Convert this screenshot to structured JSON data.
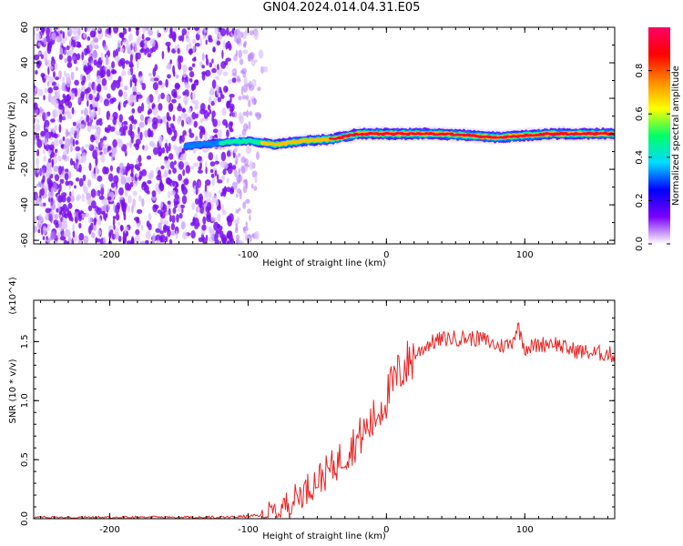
{
  "title": "GN04.2024.014.04.31.E05",
  "chart_data": [
    {
      "type": "heatmap",
      "title": "GN04.2024.014.04.31.E05",
      "xlabel": "Height of straight line (km)",
      "ylabel": "Frequency (Hz)",
      "xlim": [
        -255,
        165
      ],
      "ylim": [
        -62,
        60
      ],
      "x_ticks": [
        -200,
        -100,
        0,
        100
      ],
      "y_ticks": [
        60,
        40,
        20,
        0,
        -20,
        -40,
        -60
      ],
      "colorbar": {
        "label": "Normalized spectral amplitude",
        "range": [
          0.0,
          1.0
        ],
        "ticks": [
          0.0,
          0.2,
          0.4,
          0.6,
          0.8
        ],
        "colormap": [
          "#ffffff",
          "#7a00ff",
          "#0000ff",
          "#00dcff",
          "#00ff66",
          "#ffff00",
          "#ff8800",
          "#ff0000",
          "#ff0066"
        ]
      },
      "noise_region": {
        "x_range": [
          -255,
          -100
        ],
        "frequency_range": [
          -60,
          60
        ]
      },
      "signal_trace": [
        {
          "x": -145,
          "frequency": -7,
          "amplitude": 0.3
        },
        {
          "x": -120,
          "frequency": -5,
          "amplitude": 0.4
        },
        {
          "x": -100,
          "frequency": -4,
          "amplitude": 0.45
        },
        {
          "x": -80,
          "frequency": -6,
          "amplitude": 0.7
        },
        {
          "x": -60,
          "frequency": -4,
          "amplitude": 0.75
        },
        {
          "x": -40,
          "frequency": -3,
          "amplitude": 0.8
        },
        {
          "x": -20,
          "frequency": 0,
          "amplitude": 0.85
        },
        {
          "x": 0,
          "frequency": 0,
          "amplitude": 0.95
        },
        {
          "x": 40,
          "frequency": 0,
          "amplitude": 0.9
        },
        {
          "x": 80,
          "frequency": -2,
          "amplitude": 0.85
        },
        {
          "x": 120,
          "frequency": 0,
          "amplitude": 0.9
        },
        {
          "x": 165,
          "frequency": 0,
          "amplitude": 0.85
        }
      ]
    },
    {
      "type": "line",
      "xlabel": "Height of straight line (km)",
      "ylabel": "SNR (10 * v/v)",
      "y_multiplier": "(x10^4)",
      "xlim": [
        -255,
        165
      ],
      "ylim": [
        0,
        1.85
      ],
      "x_ticks": [
        -200,
        -100,
        0,
        100
      ],
      "y_ticks": [
        0.0,
        0.5,
        1.0,
        1.5
      ],
      "line_color": "#ee2222",
      "series": [
        {
          "x": [
            -255,
            -200,
            -150,
            -120,
            -100,
            -90,
            -80,
            -70,
            -60,
            -50,
            -40,
            -30,
            -20,
            -10,
            0,
            10,
            20,
            30,
            40,
            50,
            60,
            70,
            80,
            90,
            95,
            100,
            110,
            120,
            130,
            140,
            150,
            160,
            165
          ],
          "y": [
            0.01,
            0.01,
            0.01,
            0.01,
            0.02,
            0.03,
            0.06,
            0.14,
            0.23,
            0.33,
            0.42,
            0.55,
            0.68,
            0.82,
            1.03,
            1.25,
            1.38,
            1.48,
            1.52,
            1.53,
            1.53,
            1.52,
            1.46,
            1.48,
            1.63,
            1.45,
            1.47,
            1.5,
            1.44,
            1.42,
            1.4,
            1.4,
            1.38
          ]
        }
      ]
    }
  ]
}
